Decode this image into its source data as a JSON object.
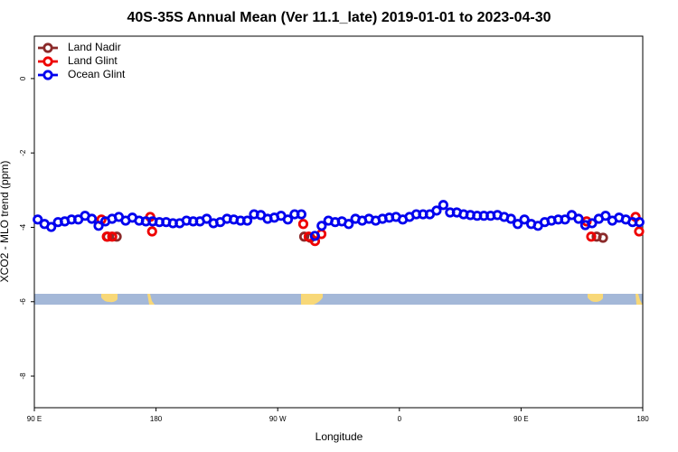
{
  "chart_data": {
    "type": "scatter",
    "title": "40S-35S Annual Mean (Ver 11.1_late)   2019-01-01 to 2023-04-30",
    "x_label": "Longitude",
    "y_label": "XCO2 - MLO trend (ppm)",
    "xlim": [
      90,
      540
    ],
    "ylim": [
      -8.85,
      1.14
    ],
    "xticks": [
      {
        "value": 90,
        "label": "90 E"
      },
      {
        "value": 180,
        "label": "180"
      },
      {
        "value": 270,
        "label": "90 W"
      },
      {
        "value": 360,
        "label": "0"
      },
      {
        "value": 450,
        "label": "90 E"
      },
      {
        "value": 540,
        "label": "180"
      }
    ],
    "yticks": [
      0,
      -2,
      -4,
      -6,
      -8
    ],
    "legend": "top-left",
    "series": [
      {
        "name": "Land Nadir",
        "color": "#8b2a2a",
        "x": [
          144.2,
          150.9,
          289.6,
          294.2,
          505.9,
          510.6
        ],
        "values": [
          -4.25,
          -4.25,
          -4.25,
          -4.28,
          -4.25,
          -4.28
        ]
      },
      {
        "name": "Land Glint",
        "color": "#ee0000",
        "x": [
          139.6,
          143.6,
          147.6,
          175.7,
          177.1,
          288.9,
          292.9,
          297.6,
          302.3,
          498.5,
          501.9,
          534.7,
          537.3
        ],
        "values": [
          -3.79,
          -4.25,
          -4.25,
          -3.72,
          -4.11,
          -3.91,
          -4.25,
          -4.37,
          -4.18,
          -3.84,
          -4.25,
          -3.72,
          -4.11
        ]
      },
      {
        "name": "Ocean Glint",
        "color": "#0000ee",
        "x": [
          92.5,
          97.5,
          102.5,
          107.5,
          112.5,
          117.5,
          122.5,
          127.5,
          132.5,
          137.5,
          142.5,
          147.5,
          152.5,
          157.5,
          162.5,
          167.5,
          172.5,
          177.5,
          182.5,
          187.5,
          192.5,
          197.5,
          202.5,
          207.5,
          212.5,
          217.5,
          222.5,
          227.5,
          232.5,
          237.5,
          242.5,
          247.5,
          252.5,
          257.5,
          262.5,
          267.5,
          272.5,
          277.5,
          282.5,
          287.5,
          292.5,
          297.5,
          302.5,
          307.5,
          312.5,
          317.5,
          322.5,
          327.5,
          332.5,
          337.5,
          342.5,
          347.5,
          352.5,
          357.5,
          362.5,
          367.5,
          372.5,
          377.5,
          382.5,
          387.5,
          392.5,
          397.5,
          402.5,
          407.5,
          412.5,
          417.5,
          422.5,
          427.5,
          432.5,
          437.5,
          442.5,
          447.5,
          452.5,
          457.5,
          462.5,
          467.5,
          472.5,
          477.5,
          482.5,
          487.5,
          492.5,
          497.5,
          502.5,
          507.5,
          512.5,
          517.5,
          522.5,
          527.5,
          532.5,
          537.5
        ],
        "values": [
          -3.79,
          -3.91,
          -3.99,
          -3.86,
          -3.84,
          -3.79,
          -3.79,
          -3.69,
          -3.77,
          -3.96,
          -3.84,
          -3.77,
          -3.72,
          -3.82,
          -3.74,
          -3.82,
          -3.84,
          -3.84,
          -3.86,
          -3.86,
          -3.89,
          -3.89,
          -3.82,
          -3.84,
          -3.84,
          -3.77,
          -3.89,
          -3.86,
          -3.77,
          -3.79,
          -3.82,
          -3.82,
          -3.65,
          -3.67,
          -3.77,
          -3.74,
          -3.69,
          -3.79,
          -3.65,
          -3.65,
          null,
          -4.23,
          -3.96,
          -3.82,
          -3.86,
          -3.84,
          -3.91,
          -3.77,
          -3.82,
          -3.77,
          -3.82,
          -3.77,
          -3.74,
          -3.72,
          -3.79,
          -3.72,
          -3.65,
          -3.65,
          -3.65,
          -3.55,
          -3.4,
          -3.6,
          -3.6,
          -3.65,
          -3.67,
          -3.69,
          -3.69,
          -3.69,
          -3.67,
          -3.72,
          -3.77,
          -3.91,
          -3.79,
          -3.91,
          -3.96,
          -3.86,
          -3.82,
          -3.79,
          -3.79,
          -3.67,
          -3.77,
          -3.94,
          -3.89,
          -3.77,
          -3.69,
          -3.82,
          -3.74,
          -3.79,
          -3.86,
          -3.86
        ]
      }
    ]
  }
}
